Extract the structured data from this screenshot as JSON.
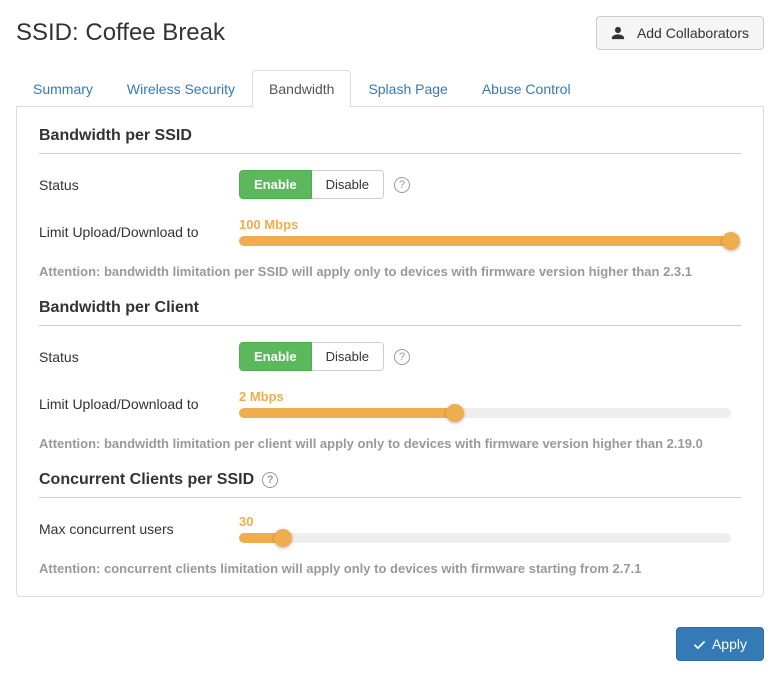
{
  "header": {
    "title_prefix": "SSID: ",
    "ssid_name": "Coffee Break",
    "add_collaborators_label": "Add Collaborators"
  },
  "tabs": {
    "items": [
      "Summary",
      "Wireless Security",
      "Bandwidth",
      "Splash Page",
      "Abuse Control"
    ],
    "active_index": 2
  },
  "sections": {
    "bw_ssid": {
      "title": "Bandwidth per SSID",
      "status_label": "Status",
      "enable_label": "Enable",
      "disable_label": "Disable",
      "enabled": true,
      "limit_label": "Limit Upload/Download to",
      "limit_value_text": "100 Mbps",
      "slider_percent": 100,
      "note": "Attention: bandwidth limitation per SSID will apply only to devices with firmware version higher than 2.3.1"
    },
    "bw_client": {
      "title": "Bandwidth per Client",
      "status_label": "Status",
      "enable_label": "Enable",
      "disable_label": "Disable",
      "enabled": true,
      "limit_label": "Limit Upload/Download to",
      "limit_value_text": "2 Mbps",
      "slider_percent": 44,
      "note": "Attention: bandwidth limitation per client will apply only to devices with firmware version higher than 2.19.0"
    },
    "concurrent": {
      "title": "Concurrent Clients per SSID",
      "max_label": "Max concurrent users",
      "max_value_text": "30",
      "slider_percent": 9,
      "note": "Attention: concurrent clients limitation will apply only to devices with firmware starting from 2.7.1"
    }
  },
  "footer": {
    "apply_label": "Apply"
  },
  "colors": {
    "accent_orange": "#f0ad4e",
    "btn_green": "#5cb85c",
    "btn_blue": "#337ab7",
    "link": "#337ab7"
  }
}
